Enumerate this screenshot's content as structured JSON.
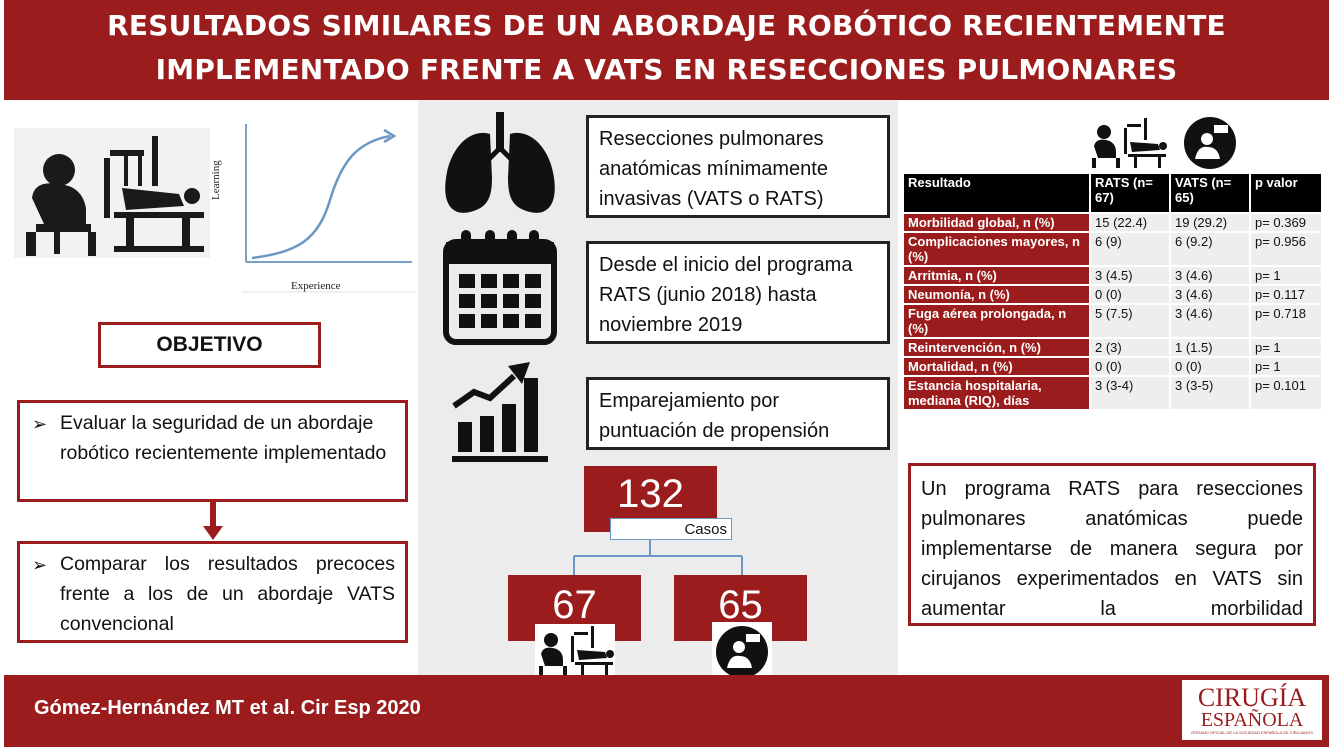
{
  "header": {
    "title_line1": "RESULTADOS SIMILARES DE UN ABORDAJE ROBÓTICO RECIENTEMENTE",
    "title_line2": "IMPLEMENTADO FRENTE A VATS EN RESECCIONES PULMONARES"
  },
  "learning_curve": {
    "ylabel": "Learning",
    "xlabel": "Experience"
  },
  "objective": {
    "title": "OBJETIVO",
    "item1": "Evaluar la seguridad de un abordaje robótico recientemente implementado",
    "item2": "Comparar los resultados precoces frente a los de un abordaje VATS convencional",
    "bullet": "➢"
  },
  "methods": {
    "box1": "Resecciones pulmonares anatómicas mínimamente invasivas (VATS o RATS)",
    "box2": "Desde el inicio del programa RATS (junio 2018) hasta noviembre 2019",
    "box3": "Emparejamiento por puntuación de propensión",
    "icons": [
      "lungs-icon",
      "calendar-icon",
      "chart-growth-icon"
    ]
  },
  "cases": {
    "total": "132",
    "total_label": "Casos",
    "rats": "67",
    "vats": "65"
  },
  "table": {
    "headers": [
      "Resultado",
      "RATS (n= 67)",
      "VATS (n= 65)",
      "p valor"
    ],
    "rows": [
      [
        "Morbilidad global, n (%)",
        "15 (22.4)",
        "19 (29.2)",
        "p= 0.369"
      ],
      [
        "Complicaciones mayores, n (%)",
        "6 (9)",
        "6 (9.2)",
        "p= 0.956"
      ],
      [
        "Arritmia, n (%)",
        "3 (4.5)",
        "3 (4.6)",
        "p= 1"
      ],
      [
        "Neumonía, n (%)",
        "0 (0)",
        "3 (4.6)",
        "p= 0.117"
      ],
      [
        "Fuga aérea prolongada, n (%)",
        "5 (7.5)",
        "3 (4.6)",
        "p= 0.718"
      ],
      [
        "Reintervención, n (%)",
        "2 (3)",
        "1 (1.5)",
        "p= 1"
      ],
      [
        "Mortalidad, n (%)",
        "0 (0)",
        "0 (0)",
        "p= 1"
      ],
      [
        "Estancia hospitalaria, mediana (RIQ), días",
        "3 (3-4)",
        "3 (3-5)",
        "p= 0.101"
      ]
    ]
  },
  "conclusion": "Un programa RATS para resecciones pulmonares anatómicas puede implementarse de manera segura por cirujanos experimentados en VATS sin aumentar la morbilidad",
  "footer": {
    "citation": "Gómez-Hernández MT et al. Cir Esp 2020",
    "logo_line1": "CIRUGÍA",
    "logo_line2": "ESPAÑOLA",
    "logo_line3": "ÓRGANO OFICIAL DE LA SOCIEDAD ESPAÑOLA DE CIRUJANOS"
  },
  "colors": {
    "accent": "#9b1c1c",
    "panel": "#ececec"
  }
}
